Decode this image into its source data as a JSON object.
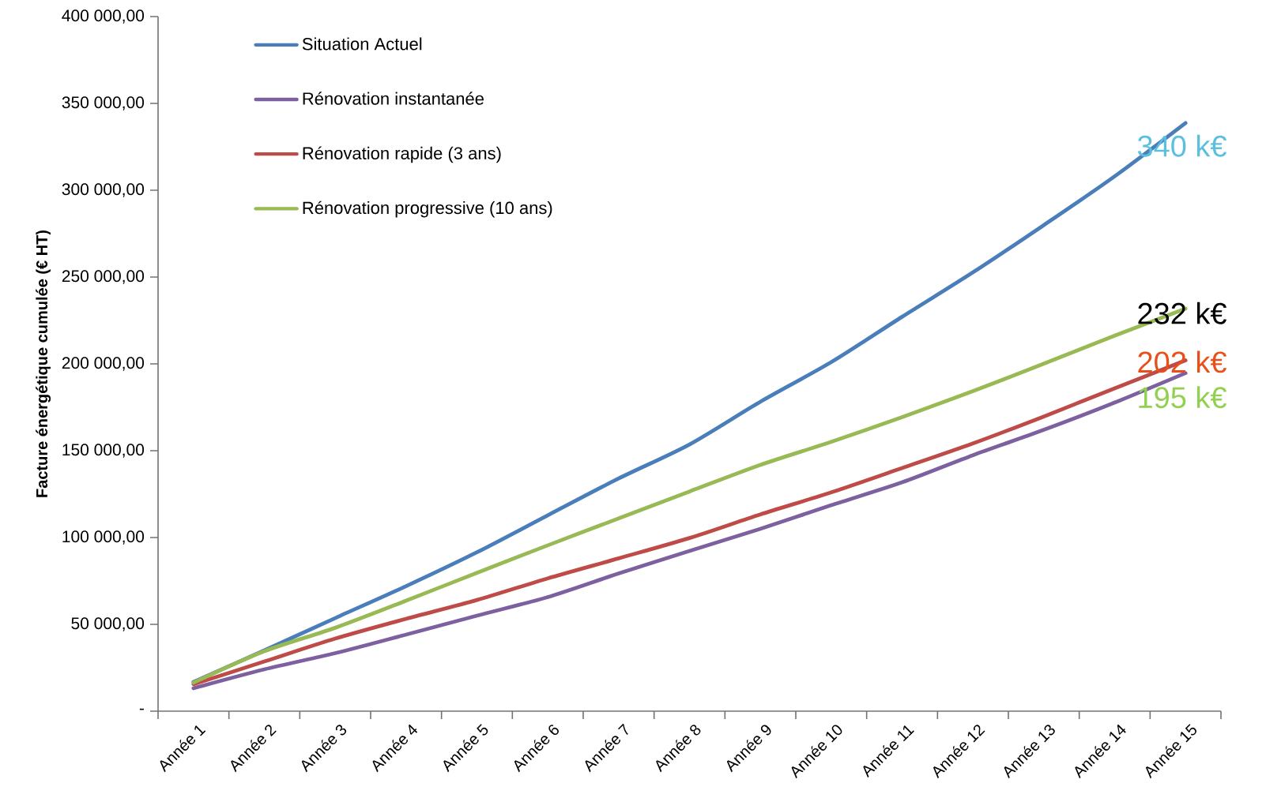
{
  "chart_data": {
    "type": "line",
    "ylabel": "Facture énergétique cumulée (€ HT)",
    "categories": [
      "Année 1",
      "Année 2",
      "Année 3",
      "Année 4",
      "Année 5",
      "Année 6",
      "Année 7",
      "Année 8",
      "Année 9",
      "Année 10",
      "Année 11",
      "Année 12",
      "Année 13",
      "Année 14",
      "Année 15"
    ],
    "series": [
      {
        "name": "Situation Actuel",
        "color": "#4a7ebb",
        "values": [
          16800,
          35000,
          53600,
          72000,
          91500,
          112800,
          134000,
          153600,
          178200,
          201000,
          227100,
          252700,
          279900,
          308000,
          338700
        ]
      },
      {
        "name": "Rénovation instantanée",
        "color": "#7d60a0",
        "values": [
          13200,
          24100,
          33400,
          44100,
          55000,
          65700,
          79300,
          92300,
          105000,
          118600,
          131800,
          147400,
          162000,
          177700,
          194700
        ]
      },
      {
        "name": "Rénovation rapide (3 ans)",
        "color": "#be4b48",
        "values": [
          15500,
          28600,
          41800,
          53200,
          64000,
          76500,
          88000,
          99700,
          113300,
          126000,
          140000,
          154200,
          169700,
          185900,
          202000
        ]
      },
      {
        "name": "Rénovation progressive (10 ans)",
        "color": "#98b954",
        "values": [
          16400,
          34500,
          48000,
          63600,
          79700,
          95500,
          111000,
          126500,
          141800,
          155100,
          169300,
          184300,
          200100,
          216200,
          231800
        ]
      }
    ],
    "ylim": [
      0,
      400000
    ],
    "yticks": [
      {
        "value": 0,
        "label": "-"
      },
      {
        "value": 50000,
        "label": "50 000,00"
      },
      {
        "value": 100000,
        "label": "100 000,00"
      },
      {
        "value": 150000,
        "label": "150 000,00"
      },
      {
        "value": 200000,
        "label": "200 000,00"
      },
      {
        "value": 250000,
        "label": "250 000,00"
      },
      {
        "value": 300000,
        "label": "300 000,00"
      },
      {
        "value": 350000,
        "label": "350 000,00"
      },
      {
        "value": 400000,
        "label": "400 000,00"
      }
    ],
    "annotations": [
      "340 k€",
      "232 k€",
      "202 k€",
      "195 k€"
    ],
    "grid": false,
    "legend": "top left",
    "marker": "none",
    "line_style": "solid"
  }
}
